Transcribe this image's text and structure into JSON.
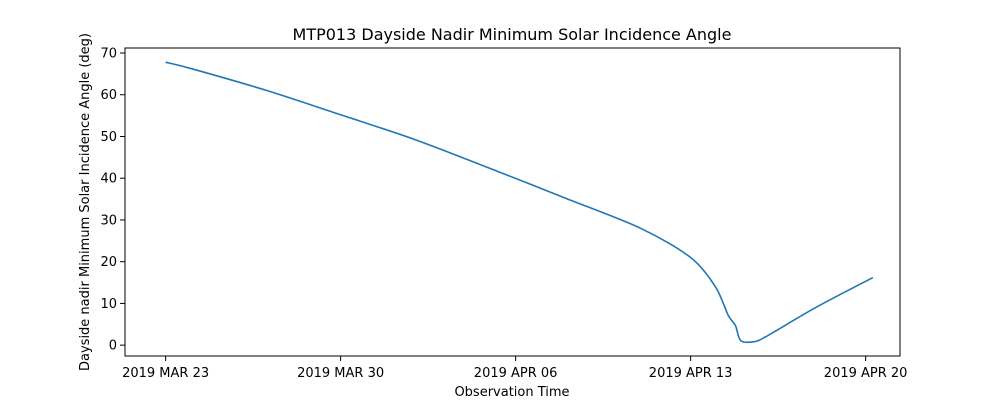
{
  "chart_data": {
    "type": "line",
    "title": "MTP013 Dayside Nadir Minimum Solar Incidence Angle",
    "xlabel": "Observation Time",
    "ylabel": "Dayside nadir Minimum Solar Incidence Angle (deg)",
    "x_axis_type": "date",
    "xlim": [
      "2019-03-21T09:00",
      "2019-04-21T09:00"
    ],
    "ylim": [
      -2.6,
      71.2
    ],
    "x_ticks": [
      {
        "date": "2019-03-23",
        "label": "2019 MAR 23"
      },
      {
        "date": "2019-03-30",
        "label": "2019 MAR 30"
      },
      {
        "date": "2019-04-06",
        "label": "2019 APR 06"
      },
      {
        "date": "2019-04-13",
        "label": "2019 APR 13"
      },
      {
        "date": "2019-04-20",
        "label": "2019 APR 20"
      }
    ],
    "y_ticks": [
      0,
      10,
      20,
      30,
      40,
      50,
      60,
      70
    ],
    "grid": false,
    "legend": "none",
    "series": [
      {
        "color": "#1f77b4",
        "x": [
          "2019-03-23T00:00",
          "2019-03-24T00:00",
          "2019-03-27T00:00",
          "2019-03-30T00:00",
          "2019-04-02T00:00",
          "2019-04-05T00:00",
          "2019-04-08T00:00",
          "2019-04-11T00:00",
          "2019-04-13T00:00",
          "2019-04-14T00:00",
          "2019-04-14T12:00",
          "2019-04-14T19:00",
          "2019-04-15T00:00",
          "2019-04-15T12:00",
          "2019-04-16T00:00",
          "2019-04-18T00:00",
          "2019-04-20T07:00"
        ],
        "y": [
          67.8,
          66.3,
          61.1,
          55.2,
          49.2,
          42.3,
          35.2,
          28.0,
          21.0,
          13.9,
          7.2,
          4.7,
          1.1,
          0.8,
          2.0,
          9.0,
          16.2
        ]
      }
    ]
  }
}
